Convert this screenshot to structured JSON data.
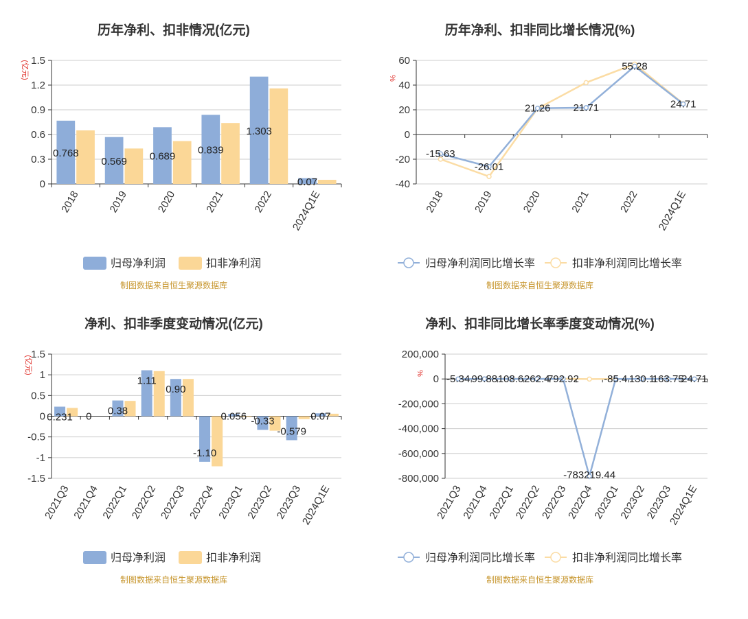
{
  "source_note": "制图数据来自恒生聚源数据库",
  "colors": {
    "series1": "#8eadd9",
    "series2": "#fbd797",
    "series1_line": "#92b0d9",
    "series2_line": "#fbdca4",
    "axis_unit": "#e0322c",
    "source": "#c7962e",
    "grid": "#cccccc",
    "axis": "#333333",
    "text": "#333333"
  },
  "chart_data": [
    {
      "type": "bar",
      "title": "历年净利、扣非情况(亿元)",
      "ylabel": "(亿元)",
      "categories": [
        "2018",
        "2019",
        "2020",
        "2021",
        "2022",
        "2024Q1E"
      ],
      "ylim": [
        0,
        1.5
      ],
      "yticks": [
        0,
        0.3,
        0.6,
        0.9,
        1.2,
        1.5
      ],
      "ytick_labels": [
        "0",
        "0.3",
        "0.6",
        "0.9",
        "1.2",
        "1.5"
      ],
      "series": [
        {
          "name": "归母净利润",
          "values": [
            0.768,
            0.569,
            0.689,
            0.839,
            1.303,
            0.07
          ],
          "labels": [
            "0.768",
            "0.569",
            "0.689",
            "0.839",
            "1.303",
            "0.07"
          ]
        },
        {
          "name": "扣非净利润",
          "values": [
            0.65,
            0.43,
            0.52,
            0.74,
            1.16,
            0.05
          ]
        }
      ],
      "legend": "bottom",
      "grid": true
    },
    {
      "type": "line",
      "title": "历年净利、扣非同比增长情况(%)",
      "ylabel": "%",
      "categories": [
        "2018",
        "2019",
        "2020",
        "2021",
        "2022",
        "2024Q1E"
      ],
      "ylim": [
        -40,
        60
      ],
      "yticks": [
        -40,
        -20,
        0,
        20,
        40,
        60
      ],
      "ytick_labels": [
        "-40",
        "-20",
        "0",
        "20",
        "40",
        "60"
      ],
      "series": [
        {
          "name": "归母净利润同比增长率",
          "values": [
            -15.63,
            -26.01,
            21.26,
            21.71,
            55.28,
            24.71
          ],
          "labels": [
            "-15.63",
            "-26.01",
            "21.26",
            "21.71",
            "55.28",
            "24.71"
          ]
        },
        {
          "name": "扣非净利润同比增长率",
          "values": [
            -20,
            -34,
            21,
            42,
            57,
            25
          ]
        }
      ],
      "legend": "bottom",
      "grid": true
    },
    {
      "type": "bar",
      "title": "净利、扣非季度变动情况(亿元)",
      "ylabel": "(亿元)",
      "categories": [
        "2021Q3",
        "2021Q4",
        "2022Q1",
        "2022Q2",
        "2022Q3",
        "2022Q4",
        "2023Q1",
        "2023Q2",
        "2023Q3",
        "2024Q1E"
      ],
      "ylim": [
        -1.5,
        1.5
      ],
      "yticks": [
        -1.5,
        -1,
        -0.5,
        0,
        0.5,
        1,
        1.5
      ],
      "ytick_labels": [
        "-1.5",
        "-1",
        "-0.5",
        "0",
        "0.5",
        "1",
        "1.5"
      ],
      "series": [
        {
          "name": "归母净利润",
          "values": [
            0.231,
            0,
            0.38,
            1.11,
            0.9,
            -1.1,
            0.056,
            -0.33,
            -0.579,
            0.07
          ],
          "labels": [
            "0.231",
            "0",
            "0.38",
            "1.11",
            "0.90",
            "-1.10",
            "0.056",
            "-0.33",
            "-0.579",
            "0.07"
          ]
        },
        {
          "name": "扣非净利润",
          "values": [
            0.2,
            0.0,
            0.37,
            1.09,
            0.9,
            -1.21,
            -0.02,
            -0.35,
            -0.07,
            0.06
          ]
        }
      ],
      "legend": "bottom",
      "grid": true
    },
    {
      "type": "line",
      "title": "净利、扣非同比增长率季度变动情况(%)",
      "ylabel": "%",
      "categories": [
        "2021Q3",
        "2021Q4",
        "2022Q1",
        "2022Q2",
        "2022Q3",
        "2022Q4",
        "2023Q1",
        "2023Q2",
        "2023Q3",
        "2024Q1E"
      ],
      "ylim": [
        -800000,
        200000
      ],
      "yticks": [
        -800000,
        -600000,
        -400000,
        -200000,
        0,
        200000
      ],
      "ytick_labels": [
        "-800,000",
        "-600,000",
        "-400,000",
        "-200,000",
        "0",
        "200,000"
      ],
      "series": [
        {
          "name": "归母净利润同比增长率",
          "values": [
            -5.34,
            99.88,
            108.6,
            262.4,
            792.92,
            -783219.44,
            -85.4,
            130.1,
            163.75,
            24.71
          ],
          "labels": [
            "-5.34",
            "99.88",
            "108.6",
            "262.4",
            "792.92",
            "-783219.44",
            "-85.4",
            "130.1",
            "163.75",
            "24.71"
          ]
        },
        {
          "name": "扣非净利润同比增长率",
          "values": [
            -5,
            95,
            100,
            250,
            800,
            -900,
            -90,
            125,
            160,
            25
          ]
        }
      ],
      "legend": "bottom",
      "grid": true
    }
  ]
}
